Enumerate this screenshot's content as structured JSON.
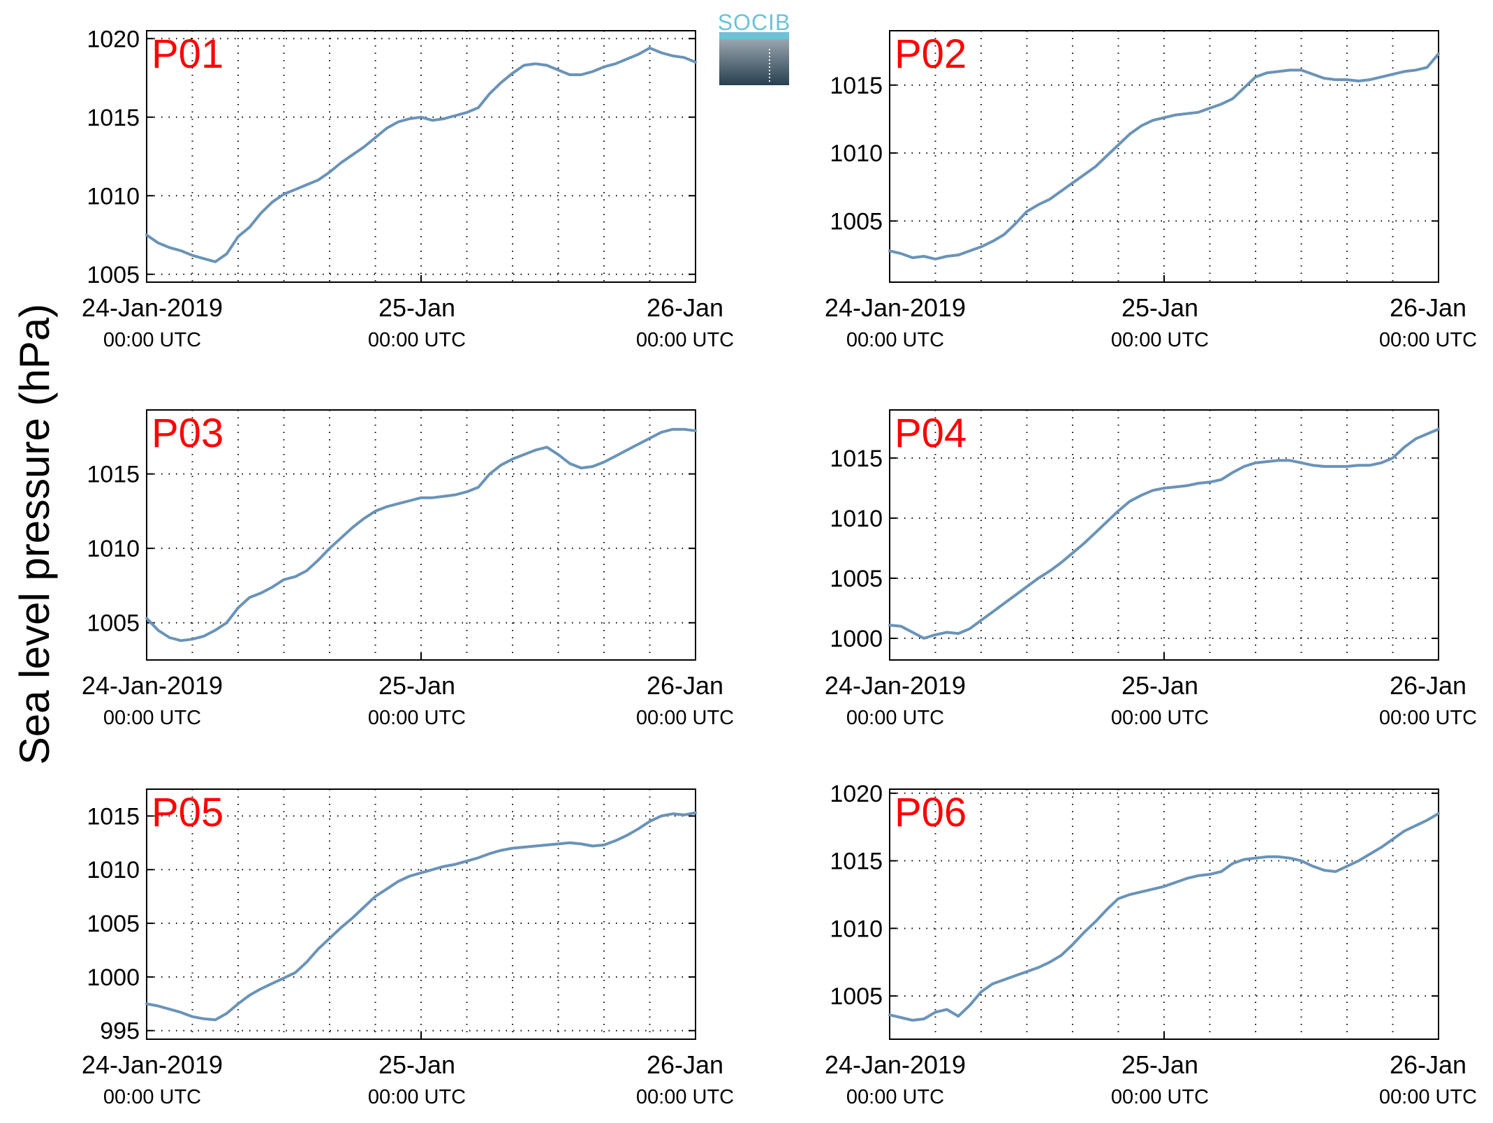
{
  "figure": {
    "ylabel": "Sea level pressure (hPa)",
    "logo_text": "SOCIB"
  },
  "style": {
    "line_color": "#6a93b8",
    "panel_label_color": "#ff0000",
    "axis_color": "#000000",
    "grid_color": "#000000"
  },
  "chart_data": [
    {
      "type": "line",
      "title": "P01",
      "xticks": [
        {
          "main": "24-Jan-2019",
          "sub": "00:00 UTC"
        },
        {
          "main": "25-Jan",
          "sub": "00:00 UTC"
        },
        {
          "main": "26-Jan",
          "sub": "00:00 UTC"
        }
      ],
      "xlim": [
        0,
        48
      ],
      "ylim": [
        1004.5,
        1020.5
      ],
      "yticks": [
        1005,
        1010,
        1015,
        1020
      ],
      "grid": true,
      "x": [
        0,
        1,
        2,
        3,
        4,
        5,
        6,
        7,
        8,
        9,
        10,
        11,
        12,
        13,
        14,
        15,
        16,
        17,
        18,
        19,
        20,
        21,
        22,
        23,
        24,
        25,
        26,
        27,
        28,
        29,
        30,
        31,
        32,
        33,
        34,
        35,
        36,
        37,
        38,
        39,
        40,
        41,
        42,
        43,
        44,
        45,
        46,
        47,
        48
      ],
      "y": [
        1007.5,
        1007.0,
        1006.7,
        1006.5,
        1006.2,
        1006.0,
        1005.8,
        1006.3,
        1007.4,
        1008.0,
        1008.9,
        1009.6,
        1010.1,
        1010.4,
        1010.7,
        1011.0,
        1011.5,
        1012.1,
        1012.6,
        1013.1,
        1013.7,
        1014.3,
        1014.7,
        1014.9,
        1015.0,
        1014.8,
        1014.9,
        1015.1,
        1015.3,
        1015.6,
        1016.5,
        1017.2,
        1017.8,
        1018.3,
        1018.4,
        1018.3,
        1018.0,
        1017.7,
        1017.7,
        1017.9,
        1018.2,
        1018.4,
        1018.7,
        1019.0,
        1019.4,
        1019.1,
        1018.9,
        1018.8,
        1018.5
      ]
    },
    {
      "type": "line",
      "title": "P02",
      "xticks": [
        {
          "main": "24-Jan-2019",
          "sub": "00:00 UTC"
        },
        {
          "main": "25-Jan",
          "sub": "00:00 UTC"
        },
        {
          "main": "26-Jan",
          "sub": "00:00 UTC"
        }
      ],
      "xlim": [
        0,
        48
      ],
      "ylim": [
        1000.5,
        1019
      ],
      "yticks": [
        1005,
        1010,
        1015
      ],
      "grid": true,
      "x": [
        0,
        1,
        2,
        3,
        4,
        5,
        6,
        7,
        8,
        9,
        10,
        11,
        12,
        13,
        14,
        15,
        16,
        17,
        18,
        19,
        20,
        21,
        22,
        23,
        24,
        25,
        26,
        27,
        28,
        29,
        30,
        31,
        32,
        33,
        34,
        35,
        36,
        37,
        38,
        39,
        40,
        41,
        42,
        43,
        44,
        45,
        46,
        47,
        48
      ],
      "y": [
        1002.8,
        1002.6,
        1002.3,
        1002.4,
        1002.2,
        1002.4,
        1002.5,
        1002.8,
        1003.1,
        1003.5,
        1004.0,
        1004.8,
        1005.7,
        1006.2,
        1006.6,
        1007.2,
        1007.8,
        1008.4,
        1009.0,
        1009.8,
        1010.6,
        1011.4,
        1012.0,
        1012.4,
        1012.6,
        1012.8,
        1012.9,
        1013.0,
        1013.3,
        1013.6,
        1014.0,
        1014.8,
        1015.6,
        1015.9,
        1016.0,
        1016.1,
        1016.1,
        1015.8,
        1015.5,
        1015.4,
        1015.4,
        1015.3,
        1015.4,
        1015.6,
        1015.8,
        1016.0,
        1016.1,
        1016.3,
        1017.3
      ]
    },
    {
      "type": "line",
      "title": "P03",
      "xticks": [
        {
          "main": "24-Jan-2019",
          "sub": "00:00 UTC"
        },
        {
          "main": "25-Jan",
          "sub": "00:00 UTC"
        },
        {
          "main": "26-Jan",
          "sub": "00:00 UTC"
        }
      ],
      "xlim": [
        0,
        48
      ],
      "ylim": [
        1002.5,
        1019.3
      ],
      "yticks": [
        1005,
        1010,
        1015
      ],
      "grid": true,
      "x": [
        0,
        1,
        2,
        3,
        4,
        5,
        6,
        7,
        8,
        9,
        10,
        11,
        12,
        13,
        14,
        15,
        16,
        17,
        18,
        19,
        20,
        21,
        22,
        23,
        24,
        25,
        26,
        27,
        28,
        29,
        30,
        31,
        32,
        33,
        34,
        35,
        36,
        37,
        38,
        39,
        40,
        41,
        42,
        43,
        44,
        45,
        46,
        47,
        48
      ],
      "y": [
        1005.3,
        1004.5,
        1004.0,
        1003.8,
        1003.9,
        1004.1,
        1004.5,
        1005.0,
        1006.0,
        1006.7,
        1007.0,
        1007.4,
        1007.9,
        1008.1,
        1008.5,
        1009.2,
        1010.0,
        1010.7,
        1011.4,
        1012.0,
        1012.5,
        1012.8,
        1013.0,
        1013.2,
        1013.4,
        1013.4,
        1013.5,
        1013.6,
        1013.8,
        1014.1,
        1015.0,
        1015.6,
        1016.0,
        1016.3,
        1016.6,
        1016.8,
        1016.3,
        1015.7,
        1015.4,
        1015.5,
        1015.8,
        1016.2,
        1016.6,
        1017.0,
        1017.4,
        1017.8,
        1018.0,
        1018.0,
        1017.9
      ]
    },
    {
      "type": "line",
      "title": "P04",
      "xticks": [
        {
          "main": "24-Jan-2019",
          "sub": "00:00 UTC"
        },
        {
          "main": "25-Jan",
          "sub": "00:00 UTC"
        },
        {
          "main": "26-Jan",
          "sub": "00:00 UTC"
        }
      ],
      "xlim": [
        0,
        48
      ],
      "ylim": [
        998.2,
        1019
      ],
      "yticks": [
        1000,
        1005,
        1010,
        1015
      ],
      "grid": true,
      "x": [
        0,
        1,
        2,
        3,
        4,
        5,
        6,
        7,
        8,
        9,
        10,
        11,
        12,
        13,
        14,
        15,
        16,
        17,
        18,
        19,
        20,
        21,
        22,
        23,
        24,
        25,
        26,
        27,
        28,
        29,
        30,
        31,
        32,
        33,
        34,
        35,
        36,
        37,
        38,
        39,
        40,
        41,
        42,
        43,
        44,
        45,
        46,
        47,
        48
      ],
      "y": [
        1001.1,
        1001.0,
        1000.5,
        1000.0,
        1000.3,
        1000.5,
        1000.4,
        1000.8,
        1001.5,
        1002.2,
        1002.9,
        1003.6,
        1004.3,
        1005.0,
        1005.6,
        1006.3,
        1007.1,
        1007.9,
        1008.8,
        1009.7,
        1010.6,
        1011.4,
        1011.9,
        1012.3,
        1012.5,
        1012.6,
        1012.7,
        1012.9,
        1013.0,
        1013.2,
        1013.8,
        1014.3,
        1014.6,
        1014.7,
        1014.8,
        1014.8,
        1014.6,
        1014.4,
        1014.3,
        1014.3,
        1014.3,
        1014.4,
        1014.4,
        1014.6,
        1015.0,
        1015.9,
        1016.6,
        1017.0,
        1017.4
      ]
    },
    {
      "type": "line",
      "title": "P05",
      "xticks": [
        {
          "main": "24-Jan-2019",
          "sub": "00:00 UTC"
        },
        {
          "main": "25-Jan",
          "sub": "00:00 UTC"
        },
        {
          "main": "26-Jan",
          "sub": "00:00 UTC"
        }
      ],
      "xlim": [
        0,
        48
      ],
      "ylim": [
        994.2,
        1017.5
      ],
      "yticks": [
        995,
        1000,
        1005,
        1010,
        1015
      ],
      "grid": true,
      "x": [
        0,
        1,
        2,
        3,
        4,
        5,
        6,
        7,
        8,
        9,
        10,
        11,
        12,
        13,
        14,
        15,
        16,
        17,
        18,
        19,
        20,
        21,
        22,
        23,
        24,
        25,
        26,
        27,
        28,
        29,
        30,
        31,
        32,
        33,
        34,
        35,
        36,
        37,
        38,
        39,
        40,
        41,
        42,
        43,
        44,
        45,
        46,
        47,
        48
      ],
      "y": [
        997.5,
        997.3,
        997.0,
        996.7,
        996.3,
        996.1,
        996.0,
        996.6,
        997.5,
        998.3,
        998.9,
        999.4,
        999.9,
        1000.4,
        1001.4,
        1002.6,
        1003.6,
        1004.6,
        1005.5,
        1006.5,
        1007.5,
        1008.2,
        1008.9,
        1009.4,
        1009.7,
        1010.0,
        1010.3,
        1010.5,
        1010.8,
        1011.1,
        1011.5,
        1011.8,
        1012.0,
        1012.1,
        1012.2,
        1012.3,
        1012.4,
        1012.5,
        1012.4,
        1012.2,
        1012.3,
        1012.7,
        1013.2,
        1013.8,
        1014.5,
        1015.0,
        1015.2,
        1015.1,
        1015.3
      ]
    },
    {
      "type": "line",
      "title": "P06",
      "xticks": [
        {
          "main": "24-Jan-2019",
          "sub": "00:00 UTC"
        },
        {
          "main": "25-Jan",
          "sub": "00:00 UTC"
        },
        {
          "main": "26-Jan",
          "sub": "00:00 UTC"
        }
      ],
      "xlim": [
        0,
        48
      ],
      "ylim": [
        1001.8,
        1020.3
      ],
      "yticks": [
        1005,
        1010,
        1015,
        1020
      ],
      "grid": true,
      "x": [
        0,
        1,
        2,
        3,
        4,
        5,
        6,
        7,
        8,
        9,
        10,
        11,
        12,
        13,
        14,
        15,
        16,
        17,
        18,
        19,
        20,
        21,
        22,
        23,
        24,
        25,
        26,
        27,
        28,
        29,
        30,
        31,
        32,
        33,
        34,
        35,
        36,
        37,
        38,
        39,
        40,
        41,
        42,
        43,
        44,
        45,
        46,
        47,
        48
      ],
      "y": [
        1003.6,
        1003.4,
        1003.2,
        1003.3,
        1003.8,
        1004.0,
        1003.5,
        1004.3,
        1005.3,
        1005.9,
        1006.2,
        1006.5,
        1006.8,
        1007.1,
        1007.5,
        1008.0,
        1008.8,
        1009.7,
        1010.5,
        1011.4,
        1012.2,
        1012.5,
        1012.7,
        1012.9,
        1013.1,
        1013.4,
        1013.7,
        1013.9,
        1014.0,
        1014.2,
        1014.8,
        1015.1,
        1015.2,
        1015.3,
        1015.3,
        1015.2,
        1015.0,
        1014.6,
        1014.3,
        1014.2,
        1014.6,
        1015.0,
        1015.5,
        1016.0,
        1016.6,
        1017.2,
        1017.6,
        1018.0,
        1018.5
      ]
    }
  ]
}
